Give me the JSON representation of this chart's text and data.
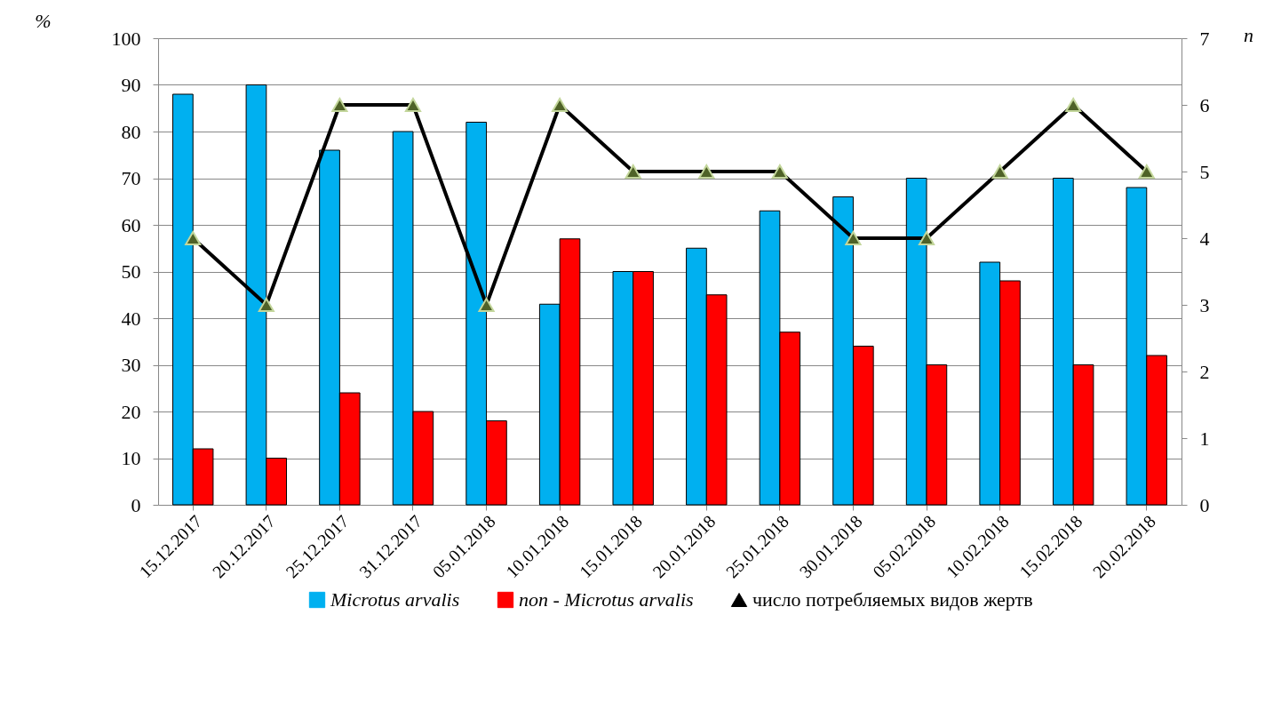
{
  "chart_data": {
    "type": "bar",
    "categories": [
      "15.12.2017",
      "20.12.2017",
      "25.12.2017",
      "31.12.2017",
      "05.01.2018",
      "10.01.2018",
      "15.01.2018",
      "20.01.2018",
      "25.01.2018",
      "30.01.2018",
      "05.02.2018",
      "10.02.2018",
      "15.02.2018",
      "20.02.2018"
    ],
    "series": [
      {
        "name": "Microtus arvalis",
        "color": "#00b0f0",
        "values": [
          88,
          90,
          76,
          80,
          82,
          43,
          50,
          55,
          63,
          66,
          70,
          52,
          70,
          68
        ]
      },
      {
        "name": "non - Microtus arvalis",
        "color": "#ff0000",
        "values": [
          12,
          10,
          24,
          20,
          18,
          57,
          50,
          45,
          37,
          34,
          30,
          48,
          30,
          32
        ]
      },
      {
        "name": "число потребляемых видов жертв",
        "type": "line",
        "axis": "y2",
        "color": "#000000",
        "values": [
          4,
          3,
          6,
          6,
          3,
          6,
          5,
          5,
          5,
          4,
          4,
          5,
          6,
          5
        ]
      }
    ],
    "ylabel": "%",
    "y2label": "n",
    "ylim": [
      0,
      100
    ],
    "yticks": [
      0,
      10,
      20,
      30,
      40,
      50,
      60,
      70,
      80,
      90,
      100
    ],
    "y2lim": [
      0,
      7
    ],
    "y2ticks": [
      0,
      1,
      2,
      3,
      4,
      5,
      6,
      7
    ],
    "grid": "y",
    "legend": "bottom",
    "marker": "triangle",
    "line_style": "solid"
  }
}
